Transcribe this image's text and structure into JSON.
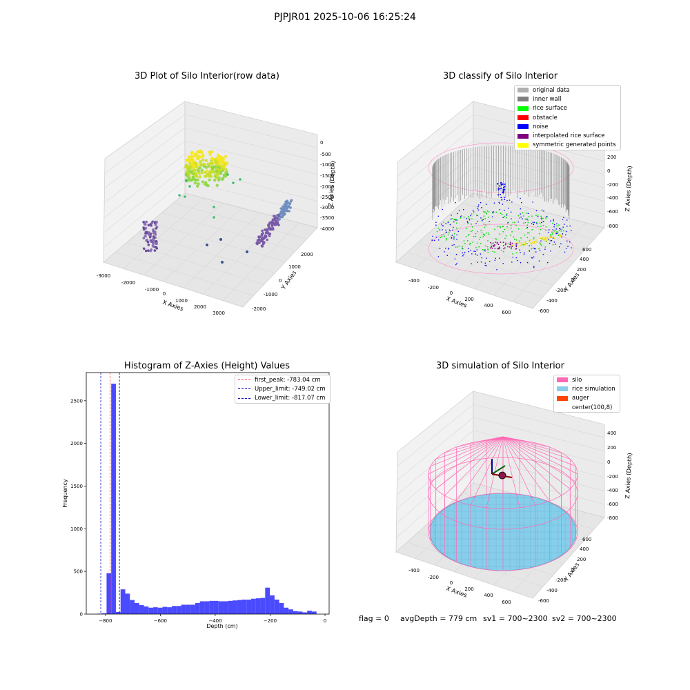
{
  "suptitle": "PJPJR01 2025-10-06 16:25:24",
  "status": {
    "flag": "flag = 0",
    "avg_depth": "avgDepth = 779 cm",
    "sv1": "sv1 = 700~2300",
    "sv2": "sv2 = 700~2300"
  },
  "colors": {
    "hist_bar": "#4a4aff",
    "first_peak": "#ff3a3a",
    "upper_limit": "#0000cc",
    "lower_limit": "#0000cc",
    "silo": "#ff69b4",
    "rice_simulation": "#87ceeb",
    "auger": "#ff4500"
  },
  "chart_data": [
    {
      "type": "scatter",
      "projection": "3d",
      "title": "3D Plot of Silo Interior(row data)",
      "xlabel": "X Axies",
      "ylabel": "Y Axies",
      "zlabel": "Z Axies (Depth)",
      "x_ticks": [
        "-3000",
        "-2000",
        "-1000",
        "0",
        "1000",
        "2000",
        "3000"
      ],
      "y_ticks": [
        "-2000",
        "-1000",
        "0",
        "1000",
        "2000"
      ],
      "z_ticks": [
        "0",
        "-500",
        "-1000",
        "-1500",
        "-2000",
        "-2500",
        "-3000",
        "-3500",
        "-4000"
      ],
      "grid": true
    },
    {
      "type": "scatter",
      "projection": "3d",
      "title": "3D classify of Silo Interior",
      "xlabel": "X Axies",
      "ylabel": "Y Axies",
      "zlabel": "Z Axies (Depth)",
      "x_ticks": [
        "-400",
        "-200",
        "0",
        "200",
        "400",
        "600"
      ],
      "y_ticks": [
        "-600",
        "-400",
        "-200",
        "0",
        "200",
        "400",
        "600"
      ],
      "z_ticks": [
        "200",
        "0",
        "-200",
        "-400",
        "-600",
        "-800"
      ],
      "legend_position": "top-right",
      "legend": [
        {
          "label": "original data",
          "color": "#b0b0b0"
        },
        {
          "label": "inner wall",
          "color": "#808080"
        },
        {
          "label": "rice surface",
          "color": "#00ff00"
        },
        {
          "label": "obstacle",
          "color": "#ff0000"
        },
        {
          "label": "noise",
          "color": "#0000ff"
        },
        {
          "label": "interpolated rice surface",
          "color": "#800080"
        },
        {
          "label": "symmetric generated points",
          "color": "#ffff00"
        }
      ],
      "grid": true
    },
    {
      "type": "bar",
      "title": "Histogram of Z-Axies (Height) Values",
      "xlabel": "Depth (cm)",
      "ylabel": "Frequency",
      "xlim": [
        -870,
        15
      ],
      "ylim": [
        0,
        2830
      ],
      "x_ticks": [
        -800,
        -600,
        -400,
        -200,
        0
      ],
      "y_ticks": [
        0,
        500,
        1000,
        1500,
        2000,
        2500
      ],
      "bin_start": -830,
      "bin_width": 17,
      "values": [
        5,
        10,
        480,
        2700,
        25,
        290,
        240,
        165,
        130,
        105,
        90,
        75,
        80,
        75,
        85,
        80,
        95,
        95,
        110,
        110,
        110,
        130,
        150,
        150,
        155,
        155,
        150,
        150,
        155,
        160,
        165,
        170,
        170,
        180,
        185,
        190,
        310,
        220,
        170,
        130,
        75,
        55,
        35,
        30,
        20,
        40,
        30
      ],
      "vlines": [
        {
          "label": "first_peak: -783.04 cm",
          "x": -783.04,
          "color": "#ff3a3a"
        },
        {
          "label": "Upper_limit: -749.02 cm",
          "x": -749.02,
          "color": "#0000cc"
        },
        {
          "label": "Lower_limit: -817.07 cm",
          "x": -817.07,
          "color": "#0000cc"
        }
      ],
      "legend_position": "top-right"
    },
    {
      "type": "scatter",
      "projection": "3d",
      "title": "3D simulation of Silo Interior",
      "xlabel": "X Axies",
      "ylabel": "Y Axies",
      "zlabel": "Z Axies (Depth)",
      "x_ticks": [
        "-400",
        "-200",
        "0",
        "200",
        "400",
        "600"
      ],
      "y_ticks": [
        "-600",
        "-400",
        "-200",
        "0",
        "200",
        "400",
        "600"
      ],
      "z_ticks": [
        "400",
        "200",
        "0",
        "-200",
        "-400",
        "-600",
        "-800"
      ],
      "legend_position": "top-right",
      "legend": [
        {
          "label": "silo",
          "color": "#ff69b4"
        },
        {
          "label": "rice simulation",
          "color": "#87ceeb"
        },
        {
          "label": "auger",
          "color": "#ff4500"
        },
        {
          "label": "center(100,8)",
          "color": ""
        }
      ],
      "grid": true
    }
  ]
}
